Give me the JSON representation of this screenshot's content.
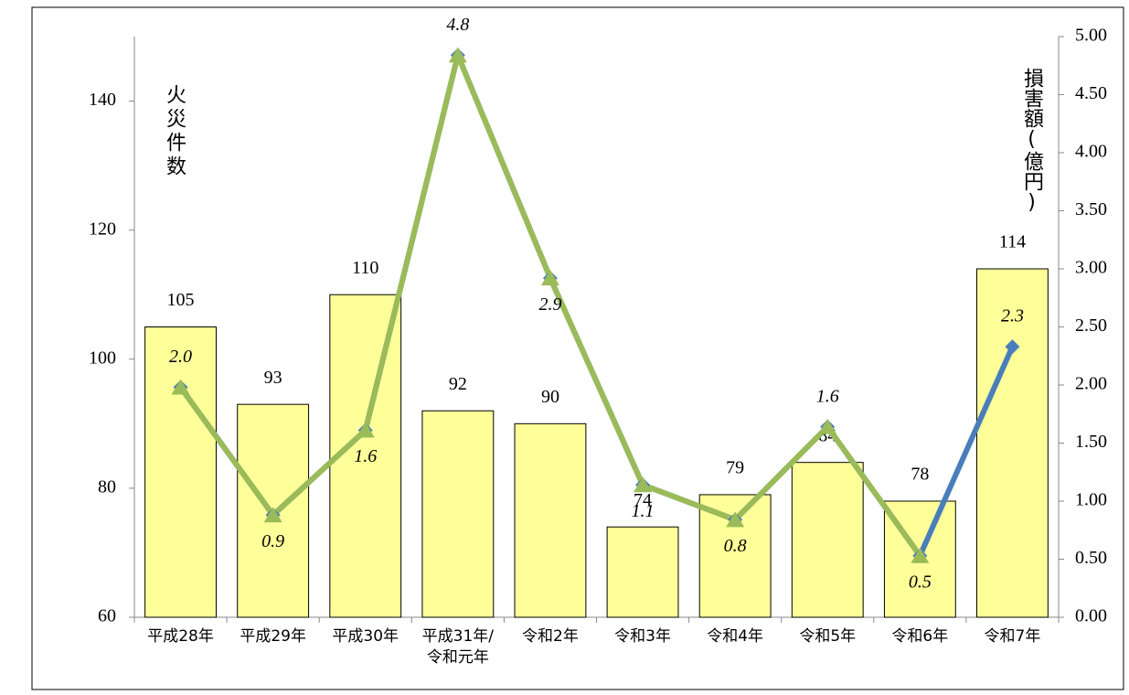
{
  "chart_data": {
    "type": "bar-line",
    "categories": [
      "平成28年",
      "平成29年",
      "平成30年",
      "平成31年/令和元年",
      "令和2年",
      "令和3年",
      "令和4年",
      "令和5年",
      "令和6年",
      "令和7年"
    ],
    "values": [
      105,
      93,
      110,
      92,
      90,
      74,
      79,
      84,
      78,
      114
    ],
    "color": "#ffff99",
    "ylabel": "火災件数",
    "y2label": "損害額(億円)",
    "ylim": [
      60,
      150
    ],
    "yticks": [
      60,
      80,
      100,
      120,
      140
    ],
    "y2lim": [
      0,
      5
    ],
    "y2ticks": [
      {
        "value": 0,
        "label": "0.00"
      },
      {
        "value": 0.5,
        "label": "0.50"
      },
      {
        "value": 1,
        "label": "1.00"
      },
      {
        "value": 1.5,
        "label": "1.50"
      },
      {
        "value": 2,
        "label": "2.00"
      },
      {
        "value": 2.5,
        "label": "2.50"
      },
      {
        "value": 3,
        "label": "3.00"
      },
      {
        "value": 3.5,
        "label": "3.50"
      },
      {
        "value": 4,
        "label": "4.00"
      },
      {
        "value": 4.5,
        "label": "4.50"
      },
      {
        "value": 5,
        "label": "5.00"
      }
    ],
    "series": [
      {
        "color": "#4a7ebb",
        "marker": "diamond",
        "axis": "y2",
        "values": [
          1.98,
          0.88,
          1.61,
          4.84,
          2.92,
          1.14,
          0.84,
          1.64,
          0.53,
          2.33
        ],
        "value_labels": [
          "2.0",
          "0.9",
          "1.6",
          "4.8",
          "2.9",
          "1.1",
          "0.8",
          "1.6",
          "0.5",
          "2.3"
        ]
      },
      {
        "color": "#9bbb59",
        "marker": "triangle",
        "axis": "y2",
        "values": [
          1.98,
          0.88,
          1.61,
          4.84,
          2.92,
          1.14,
          0.84,
          1.64,
          0.53,
          null
        ]
      }
    ]
  }
}
